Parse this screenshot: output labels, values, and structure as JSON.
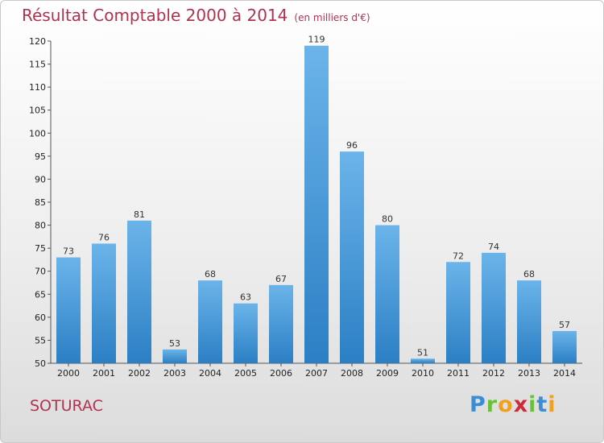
{
  "header": {
    "title": "Résultat Comptable 2000 à 2014",
    "unit": "(en milliers d'€)"
  },
  "commune": "SOTURAC",
  "logo": {
    "text": "Proxiti",
    "letters": [
      {
        "ch": "P",
        "color": "#3a8ed6"
      },
      {
        "ch": "r",
        "color": "#6abf3b"
      },
      {
        "ch": "o",
        "color": "#f0a020"
      },
      {
        "ch": "x",
        "color": "#d02a3a"
      },
      {
        "ch": "i",
        "color": "#6abf3b"
      },
      {
        "ch": "t",
        "color": "#3a8ed6"
      },
      {
        "ch": "i",
        "color": "#f0a020"
      }
    ]
  },
  "colors": {
    "title": "#b0324e",
    "bar_light": "#6bb4ea",
    "bar_dark": "#2b7fc4"
  },
  "chart_data": {
    "type": "bar",
    "title": "Résultat Comptable 2000 à 2014",
    "xlabel": "",
    "ylabel": "",
    "ylim": [
      50,
      120
    ],
    "yticks": [
      50,
      55,
      60,
      65,
      70,
      75,
      80,
      85,
      90,
      95,
      100,
      105,
      110,
      115,
      120
    ],
    "grid": false,
    "categories": [
      "2000",
      "2001",
      "2002",
      "2003",
      "2004",
      "2005",
      "2006",
      "2007",
      "2008",
      "2009",
      "2010",
      "2011",
      "2012",
      "2013",
      "2014"
    ],
    "values": [
      73,
      76,
      81,
      53,
      68,
      63,
      67,
      119,
      96,
      80,
      51,
      72,
      74,
      68,
      57
    ]
  }
}
